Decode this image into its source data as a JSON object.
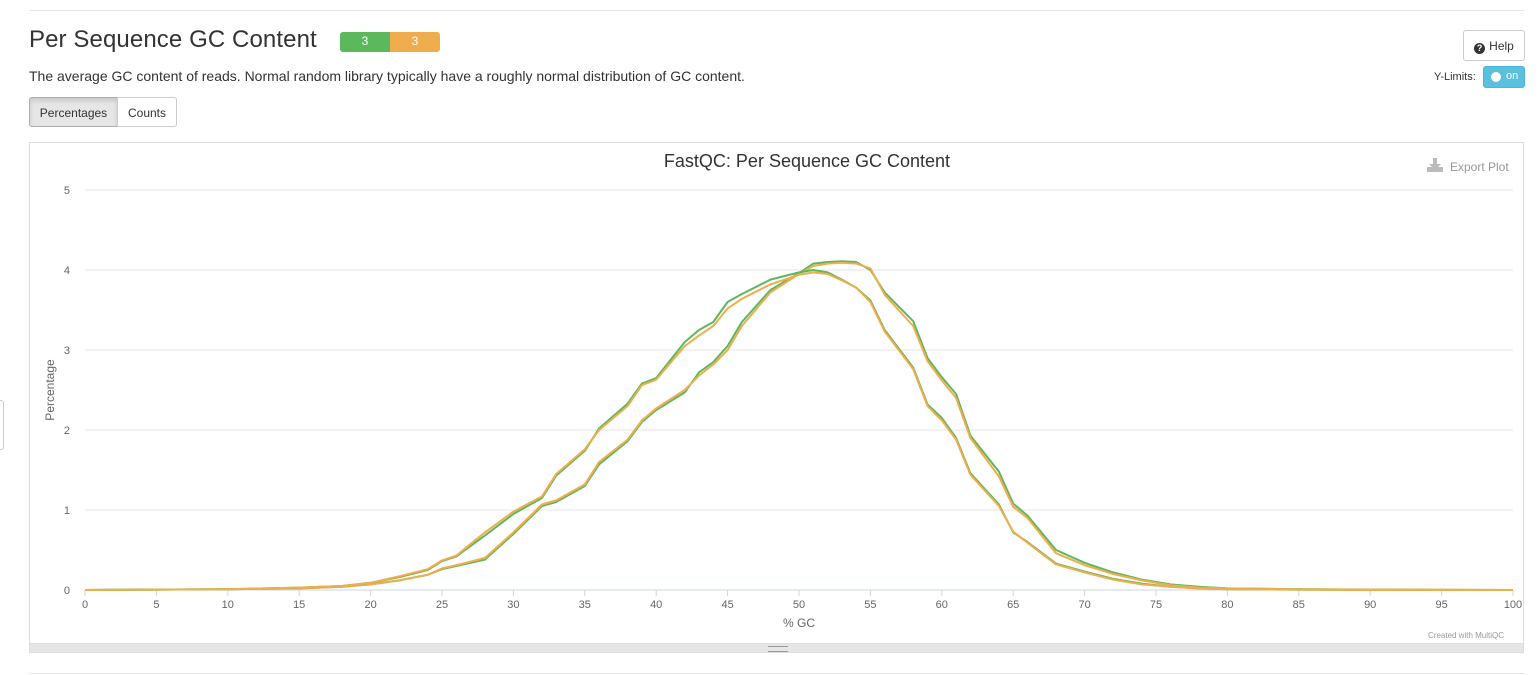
{
  "section": {
    "title": "Per Sequence GC Content",
    "status_pass_count": "3",
    "status_warn_count": "3",
    "description": "The average GC content of reads. Normal random library typically have a roughly normal distribution of GC content.",
    "btn_percentages": "Percentages",
    "btn_counts": "Counts",
    "help_label": "Help",
    "ylimits_label": "Y-Limits:",
    "toggle_label": "on",
    "export_label": "Export Plot",
    "credit": "Created with MultiQC",
    "colors": {
      "pass": "#5cb85c",
      "warn": "#f0ad4e",
      "toggle": "#5bc0de"
    }
  },
  "chart_data": {
    "type": "line",
    "title": "FastQC: Per Sequence GC Content",
    "xlabel": "% GC",
    "ylabel": "Percentage",
    "xlim": [
      0,
      100
    ],
    "ylim": [
      0,
      5
    ],
    "x_ticks": [
      0,
      5,
      10,
      15,
      20,
      25,
      30,
      35,
      40,
      45,
      50,
      55,
      60,
      65,
      70,
      75,
      80,
      85,
      90,
      95,
      100
    ],
    "y_ticks": [
      0,
      1,
      2,
      3,
      4,
      5
    ],
    "grid": true,
    "legend": "none",
    "series": [
      {
        "color": "#5cb85c",
        "x": [
          0,
          10,
          15,
          18,
          20,
          22,
          24,
          25,
          26,
          28,
          30,
          32,
          33,
          35,
          36,
          38,
          39,
          40,
          42,
          43,
          44,
          45,
          46,
          48,
          50,
          51,
          52,
          53,
          54,
          55,
          56,
          58,
          59,
          60,
          61,
          62,
          64,
          65,
          66,
          68,
          70,
          72,
          74,
          76,
          78,
          80,
          85,
          90,
          100
        ],
        "y": [
          0,
          0.01,
          0.02,
          0.04,
          0.07,
          0.12,
          0.19,
          0.26,
          0.3,
          0.38,
          0.7,
          1.05,
          1.1,
          1.3,
          1.57,
          1.86,
          2.1,
          2.25,
          2.47,
          2.72,
          2.85,
          3.05,
          3.35,
          3.75,
          3.96,
          4.08,
          4.1,
          4.11,
          4.1,
          4.0,
          3.72,
          3.36,
          2.9,
          2.66,
          2.45,
          1.93,
          1.48,
          1.08,
          0.93,
          0.5,
          0.34,
          0.22,
          0.13,
          0.07,
          0.04,
          0.02,
          0.01,
          0.005,
          0
        ]
      },
      {
        "color": "#f0ad4e",
        "x": [
          0,
          10,
          15,
          18,
          20,
          22,
          24,
          25,
          26,
          28,
          30,
          32,
          33,
          35,
          36,
          38,
          39,
          40,
          42,
          43,
          44,
          45,
          46,
          48,
          50,
          51,
          52,
          53,
          54,
          55,
          56,
          58,
          59,
          60,
          61,
          62,
          64,
          65,
          66,
          68,
          70,
          72,
          74,
          76,
          78,
          80,
          85,
          90,
          100
        ],
        "y": [
          0,
          0.01,
          0.02,
          0.04,
          0.07,
          0.12,
          0.19,
          0.27,
          0.31,
          0.4,
          0.72,
          1.07,
          1.12,
          1.32,
          1.6,
          1.88,
          2.12,
          2.27,
          2.5,
          2.68,
          2.82,
          3.0,
          3.3,
          3.72,
          3.95,
          4.05,
          4.08,
          4.09,
          4.08,
          4.02,
          3.69,
          3.3,
          2.86,
          2.62,
          2.4,
          1.9,
          1.42,
          1.04,
          0.9,
          0.46,
          0.31,
          0.2,
          0.12,
          0.06,
          0.03,
          0.02,
          0.01,
          0.005,
          0
        ]
      },
      {
        "color": "#5cb85c",
        "x": [
          0,
          10,
          15,
          18,
          20,
          22,
          24,
          25,
          26,
          28,
          30,
          32,
          33,
          35,
          36,
          38,
          39,
          40,
          42,
          43,
          44,
          45,
          46,
          48,
          50,
          51,
          52,
          53,
          54,
          55,
          56,
          58,
          59,
          60,
          61,
          62,
          64,
          65,
          66,
          68,
          70,
          72,
          74,
          76,
          78,
          80,
          85,
          90,
          100
        ],
        "y": [
          0,
          0.01,
          0.03,
          0.05,
          0.09,
          0.16,
          0.25,
          0.36,
          0.42,
          0.68,
          0.95,
          1.15,
          1.43,
          1.74,
          2.02,
          2.33,
          2.58,
          2.65,
          3.1,
          3.25,
          3.35,
          3.6,
          3.7,
          3.88,
          3.97,
          4.0,
          3.97,
          3.88,
          3.78,
          3.62,
          3.25,
          2.78,
          2.32,
          2.15,
          1.9,
          1.46,
          1.07,
          0.72,
          0.6,
          0.33,
          0.23,
          0.14,
          0.08,
          0.04,
          0.02,
          0.01,
          0.005,
          0,
          0
        ]
      },
      {
        "color": "#f0ad4e",
        "x": [
          0,
          10,
          15,
          18,
          20,
          22,
          24,
          25,
          26,
          28,
          30,
          32,
          33,
          35,
          36,
          38,
          39,
          40,
          42,
          43,
          44,
          45,
          46,
          48,
          50,
          51,
          52,
          53,
          54,
          55,
          56,
          58,
          59,
          60,
          61,
          62,
          64,
          65,
          66,
          68,
          70,
          72,
          74,
          76,
          78,
          80,
          85,
          90,
          100
        ],
        "y": [
          0,
          0.01,
          0.03,
          0.05,
          0.09,
          0.17,
          0.26,
          0.37,
          0.43,
          0.72,
          0.98,
          1.17,
          1.45,
          1.76,
          2.0,
          2.3,
          2.56,
          2.63,
          3.05,
          3.18,
          3.3,
          3.52,
          3.64,
          3.82,
          3.94,
          3.97,
          3.95,
          3.87,
          3.78,
          3.6,
          3.23,
          2.76,
          2.3,
          2.12,
          1.88,
          1.44,
          1.05,
          0.73,
          0.59,
          0.32,
          0.22,
          0.13,
          0.07,
          0.04,
          0.02,
          0.01,
          0.005,
          0,
          0
        ]
      }
    ]
  }
}
